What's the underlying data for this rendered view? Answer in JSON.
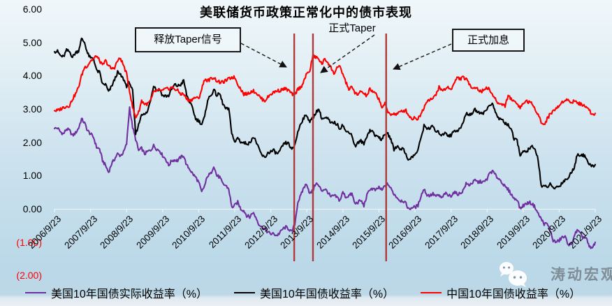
{
  "watermark": {
    "text": "涛动宏观",
    "icon": "wechat-icon"
  },
  "colors": {
    "event_line": "#b03a3a",
    "axis_line": "#edf2f4",
    "negative_tick_label": "#ff0000",
    "annotation_border": "#161616"
  },
  "chart_data": {
    "type": "line",
    "title": "美联储货币政策正常化中的债市表现",
    "xlabel": "",
    "ylabel": "",
    "x_start": "2006/9",
    "x_end": "2021/9",
    "x_interval": "monthly",
    "ylim": [
      -2,
      6
    ],
    "y_tick_step": 1,
    "grid": false,
    "legend_position": "bottom",
    "y_tick_labels": [
      {
        "text": "6.00",
        "value": 6
      },
      {
        "text": "5.00",
        "value": 5
      },
      {
        "text": "4.00",
        "value": 4
      },
      {
        "text": "3.00",
        "value": 3
      },
      {
        "text": "2.00",
        "value": 2
      },
      {
        "text": "1.00",
        "value": 1
      },
      {
        "text": "0.00",
        "value": 0
      },
      {
        "text": "(1.00)",
        "value": -1
      },
      {
        "text": "(2.00)",
        "value": -2
      }
    ],
    "x_tick_labels": [
      "2006/9/23",
      "2007/9/23",
      "2008/9/23",
      "2009/9/23",
      "2010/9/23",
      "2011/9/23",
      "2012/9/23",
      "2013/9/23",
      "2014/9/23",
      "2015/9/23",
      "2016/9/23",
      "2017/9/23",
      "2018/9/23",
      "2019/9/23",
      "2020/9/23",
      "2021/9/23"
    ],
    "annotations": [
      {
        "label": "释放Taper信号",
        "date": "2013/5",
        "year_frac": 6.65,
        "boxed": true
      },
      {
        "label": "正式Taper",
        "date": "2013/12",
        "year_frac": 7.17,
        "boxed": false
      },
      {
        "label": "正式加息",
        "date": "2015/12",
        "year_frac": 9.2,
        "boxed": true
      }
    ],
    "series": [
      {
        "name": "美国10年国债实际收益率（%）",
        "color": "#7030a0",
        "values": [
          2.41,
          2.43,
          2.31,
          2.25,
          2.4,
          2.35,
          2.2,
          2.28,
          2.42,
          2.7,
          2.58,
          2.35,
          2.25,
          2.15,
          1.85,
          1.8,
          1.45,
          1.3,
          1.1,
          1.35,
          1.5,
          1.65,
          1.6,
          1.7,
          1.95,
          3.05,
          2.45,
          2.1,
          1.75,
          1.82,
          1.65,
          1.72,
          1.76,
          1.9,
          1.8,
          1.75,
          1.6,
          1.5,
          1.3,
          1.45,
          1.47,
          1.45,
          1.55,
          1.6,
          1.3,
          1.2,
          1.05,
          0.95,
          0.8,
          0.5,
          0.7,
          1.0,
          1.05,
          1.3,
          1.0,
          0.95,
          0.75,
          0.7,
          0.6,
          0.05,
          0.1,
          0.2,
          0.0,
          -0.05,
          -0.2,
          -0.25,
          -0.1,
          -0.25,
          -0.45,
          -0.55,
          -0.6,
          -0.7,
          -0.75,
          -0.75,
          -0.8,
          -0.72,
          -0.6,
          -0.55,
          -0.6,
          -0.7,
          -0.45,
          0.2,
          0.4,
          0.65,
          0.75,
          0.45,
          0.55,
          0.78,
          0.68,
          0.55,
          0.6,
          0.5,
          0.35,
          0.4,
          0.35,
          0.25,
          0.5,
          0.35,
          0.4,
          0.45,
          0.15,
          0.2,
          0.25,
          0.1,
          0.4,
          0.6,
          0.6,
          0.55,
          0.65,
          0.55,
          0.7,
          0.75,
          0.6,
          0.45,
          0.35,
          0.25,
          0.25,
          0.15,
          -0.02,
          0.05,
          0.05,
          0.1,
          0.4,
          0.6,
          0.42,
          0.4,
          0.45,
          0.38,
          0.4,
          0.32,
          0.47,
          0.4,
          0.4,
          0.5,
          0.45,
          0.46,
          0.55,
          0.75,
          0.72,
          0.78,
          0.85,
          0.8,
          0.82,
          0.8,
          0.9,
          1.1,
          1.12,
          0.98,
          0.9,
          0.8,
          0.65,
          0.58,
          0.45,
          0.3,
          0.3,
          0.0,
          0.1,
          0.15,
          0.2,
          0.15,
          0.05,
          -0.15,
          -0.3,
          -0.45,
          -0.45,
          -0.65,
          -0.95,
          -1.0,
          -0.95,
          -0.85,
          -0.85,
          -1.05,
          -1.1,
          -0.8,
          -0.65,
          -0.75,
          -0.85,
          -0.88,
          -1.15,
          -1.18,
          -1.0
        ]
      },
      {
        "name": "美国10年国债收益率（%）",
        "color": "#000000",
        "values": [
          4.72,
          4.73,
          4.6,
          4.56,
          4.76,
          4.72,
          4.56,
          4.69,
          4.75,
          5.1,
          5.0,
          4.67,
          4.52,
          4.53,
          4.15,
          4.1,
          3.74,
          3.74,
          3.51,
          3.68,
          3.88,
          4.1,
          4.01,
          3.89,
          3.69,
          3.81,
          3.53,
          2.25,
          2.52,
          2.87,
          2.82,
          2.93,
          3.29,
          3.72,
          3.56,
          3.59,
          3.4,
          3.39,
          3.4,
          3.59,
          3.73,
          3.69,
          3.73,
          3.85,
          3.42,
          3.2,
          3.01,
          2.7,
          2.65,
          2.54,
          2.76,
          3.29,
          3.39,
          3.58,
          3.41,
          3.46,
          3.17,
          3.0,
          3.0,
          2.3,
          1.98,
          2.15,
          2.01,
          1.98,
          1.97,
          1.97,
          2.17,
          2.05,
          1.8,
          1.62,
          1.53,
          1.68,
          1.72,
          1.75,
          1.65,
          1.72,
          1.91,
          1.98,
          1.96,
          1.76,
          1.93,
          2.3,
          2.58,
          2.74,
          2.81,
          2.62,
          2.72,
          2.9,
          3.0,
          2.71,
          2.72,
          2.71,
          2.56,
          2.6,
          2.54,
          2.42,
          2.53,
          2.3,
          2.33,
          2.21,
          1.88,
          1.98,
          2.04,
          1.94,
          2.2,
          2.36,
          2.32,
          2.17,
          2.17,
          2.07,
          2.26,
          2.24,
          2.09,
          1.78,
          1.89,
          1.81,
          1.81,
          1.64,
          1.45,
          1.56,
          1.63,
          1.76,
          2.14,
          2.49,
          2.43,
          2.42,
          2.48,
          2.3,
          2.3,
          2.19,
          2.32,
          2.21,
          2.2,
          2.36,
          2.35,
          2.4,
          2.58,
          2.86,
          2.84,
          2.87,
          2.98,
          2.91,
          2.89,
          2.89,
          3.0,
          3.15,
          3.12,
          2.83,
          2.71,
          2.68,
          2.57,
          2.53,
          2.4,
          2.07,
          2.06,
          1.63,
          1.7,
          1.71,
          1.81,
          1.86,
          1.76,
          1.5,
          0.7,
          0.66,
          0.67,
          0.73,
          0.62,
          0.65,
          0.68,
          0.79,
          0.87,
          0.93,
          1.08,
          1.26,
          1.61,
          1.64,
          1.62,
          1.52,
          1.32,
          1.28,
          1.33
        ]
      },
      {
        "name": "中国10年国债收益率（%）",
        "color": "#ff0000",
        "values": [
          2.95,
          2.95,
          3.0,
          3.05,
          3.08,
          3.1,
          3.3,
          3.45,
          3.65,
          4.0,
          4.25,
          4.3,
          4.45,
          4.5,
          4.6,
          4.45,
          4.3,
          4.45,
          4.3,
          4.2,
          4.25,
          4.45,
          4.52,
          4.3,
          4.05,
          3.55,
          3.05,
          2.75,
          2.9,
          3.25,
          3.15,
          3.15,
          3.25,
          3.5,
          3.55,
          3.55,
          3.55,
          3.6,
          3.6,
          3.65,
          3.6,
          3.55,
          3.45,
          3.45,
          3.3,
          3.25,
          3.3,
          3.35,
          3.3,
          3.6,
          3.9,
          3.85,
          3.9,
          3.95,
          3.85,
          3.8,
          3.8,
          3.85,
          3.9,
          3.95,
          3.95,
          3.75,
          3.6,
          3.45,
          3.45,
          3.5,
          3.55,
          3.5,
          3.4,
          3.3,
          3.25,
          3.35,
          3.45,
          3.5,
          3.55,
          3.55,
          3.6,
          3.6,
          3.55,
          3.45,
          3.42,
          3.6,
          3.65,
          3.85,
          4.05,
          4.15,
          4.6,
          4.55,
          4.5,
          4.35,
          4.5,
          4.4,
          4.25,
          4.05,
          4.25,
          4.25,
          4.05,
          3.8,
          3.6,
          3.65,
          3.5,
          3.4,
          3.55,
          3.45,
          3.4,
          3.6,
          3.5,
          3.45,
          3.3,
          3.05,
          3.15,
          2.9,
          2.85,
          2.85,
          2.85,
          2.9,
          2.95,
          2.95,
          2.8,
          2.7,
          2.75,
          2.7,
          2.85,
          3.05,
          3.25,
          3.3,
          3.3,
          3.45,
          3.65,
          3.55,
          3.6,
          3.65,
          3.6,
          3.75,
          3.95,
          3.9,
          3.95,
          3.9,
          3.75,
          3.65,
          3.65,
          3.6,
          3.5,
          3.6,
          3.65,
          3.55,
          3.4,
          3.25,
          3.15,
          3.15,
          3.1,
          3.4,
          3.3,
          3.25,
          3.15,
          3.05,
          3.15,
          3.25,
          3.2,
          3.15,
          3.0,
          2.85,
          2.6,
          2.52,
          2.7,
          2.85,
          2.95,
          3.0,
          3.1,
          3.2,
          3.3,
          3.25,
          3.2,
          3.25,
          3.2,
          3.15,
          3.1,
          3.1,
          2.95,
          2.85,
          2.87
        ]
      }
    ]
  }
}
